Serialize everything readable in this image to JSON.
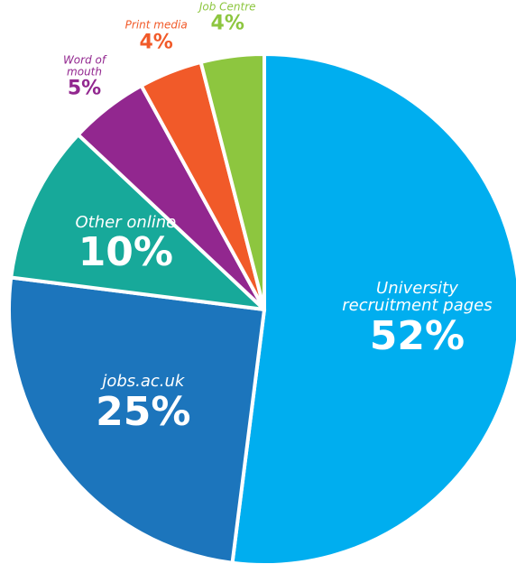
{
  "chart_data": {
    "type": "pie",
    "categories": [
      "University recruitment pages",
      "jobs.ac.uk",
      "Other online",
      "Word of mouth",
      "Print media",
      "Job Centre"
    ],
    "values": [
      52,
      25,
      10,
      5,
      4,
      4
    ],
    "value_labels": [
      "52%",
      "25%",
      "10%",
      "5%",
      "4%",
      "4%"
    ],
    "colors": [
      "#00aeef",
      "#1c75bc",
      "#17a99a",
      "#92278f",
      "#f15a29",
      "#8dc63f"
    ]
  }
}
